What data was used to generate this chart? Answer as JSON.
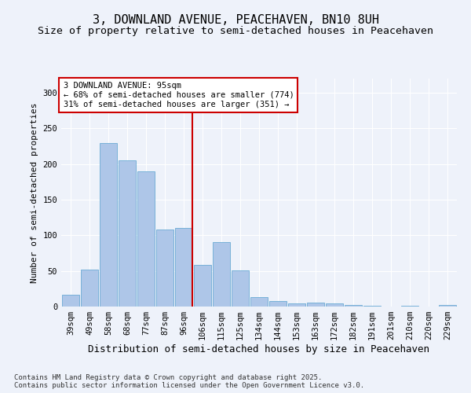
{
  "title": "3, DOWNLAND AVENUE, PEACEHAVEN, BN10 8UH",
  "subtitle": "Size of property relative to semi-detached houses in Peacehaven",
  "xlabel": "Distribution of semi-detached houses by size in Peacehaven",
  "ylabel": "Number of semi-detached properties",
  "categories": [
    "39sqm",
    "49sqm",
    "58sqm",
    "68sqm",
    "77sqm",
    "87sqm",
    "96sqm",
    "106sqm",
    "115sqm",
    "125sqm",
    "134sqm",
    "144sqm",
    "153sqm",
    "163sqm",
    "172sqm",
    "182sqm",
    "191sqm",
    "201sqm",
    "210sqm",
    "220sqm",
    "229sqm"
  ],
  "values": [
    17,
    52,
    230,
    205,
    190,
    108,
    110,
    59,
    90,
    51,
    13,
    8,
    4,
    5,
    4,
    2,
    1,
    0,
    1,
    0,
    2
  ],
  "bar_color": "#aec6e8",
  "bar_edgecolor": "#6aaad4",
  "vline_x_index": 6,
  "vline_color": "#cc0000",
  "annotation_lines": [
    "3 DOWNLAND AVENUE: 95sqm",
    "← 68% of semi-detached houses are smaller (774)",
    "31% of semi-detached houses are larger (351) →"
  ],
  "annotation_box_color": "#cc0000",
  "background_color": "#eef2fa",
  "grid_color": "#ffffff",
  "ylim": [
    0,
    320
  ],
  "yticks": [
    0,
    50,
    100,
    150,
    200,
    250,
    300
  ],
  "footer_line1": "Contains HM Land Registry data © Crown copyright and database right 2025.",
  "footer_line2": "Contains public sector information licensed under the Open Government Licence v3.0.",
  "title_fontsize": 11,
  "subtitle_fontsize": 9.5,
  "xlabel_fontsize": 9,
  "ylabel_fontsize": 8,
  "tick_fontsize": 7.5,
  "annotation_fontsize": 7.5,
  "footer_fontsize": 6.5
}
